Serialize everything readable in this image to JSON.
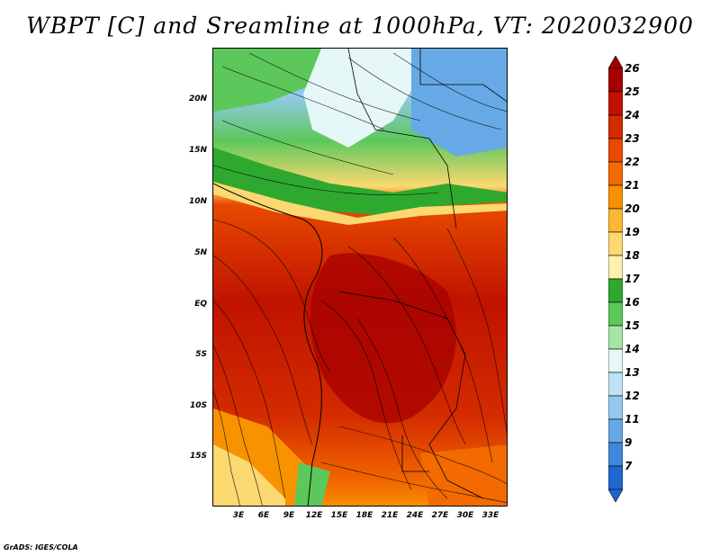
{
  "title": "WBPT [C] and Sreamline at 1000hPa, VT: 2020032900",
  "credit": "GrADS: IGES/COLA",
  "map": {
    "lat_labels": [
      "20N",
      "15N",
      "10N",
      "5N",
      "EQ",
      "5S",
      "10S",
      "15S"
    ],
    "lon_labels": [
      "3E",
      "6E",
      "9E",
      "12E",
      "15E",
      "18E",
      "21E",
      "24E",
      "27E",
      "30E",
      "33E"
    ],
    "field": "wet-bulb potential temperature",
    "overlay": "streamlines"
  },
  "colorbar": {
    "labels": [
      "26",
      "25",
      "24",
      "23",
      "22",
      "21",
      "20",
      "19",
      "18",
      "17",
      "16",
      "15",
      "14",
      "13",
      "12",
      "11",
      "9",
      "7"
    ],
    "colors": [
      "#a50000",
      "#c01300",
      "#d42b00",
      "#e84a00",
      "#f26a00",
      "#f99200",
      "#fbb733",
      "#fcd870",
      "#fdf0b0",
      "#2fa82f",
      "#5cc85c",
      "#a4e6a4",
      "#e6f7f7",
      "#bfe3f6",
      "#94c9ef",
      "#66a9e6",
      "#3f89dc",
      "#1f67cf"
    ]
  }
}
